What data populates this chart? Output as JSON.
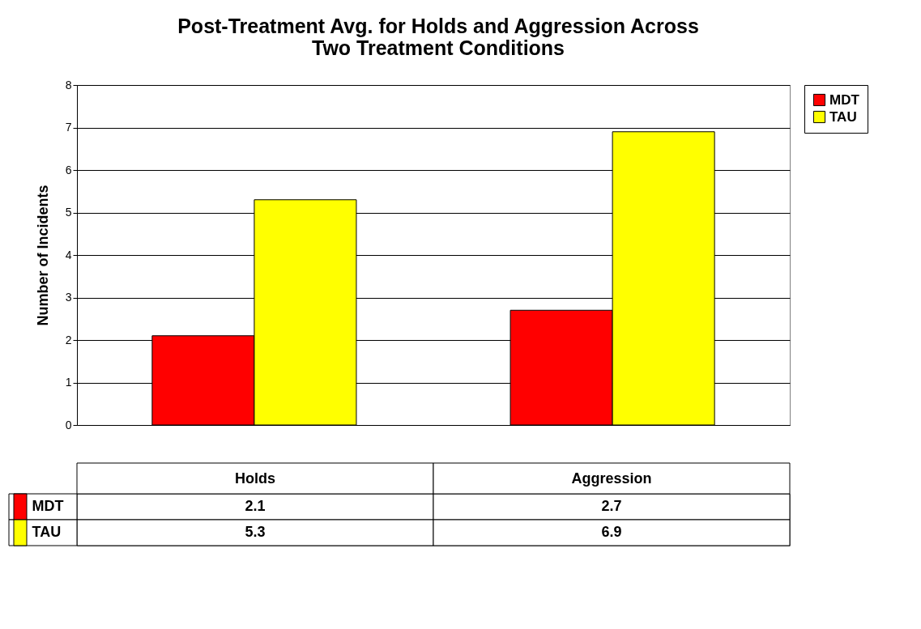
{
  "chart_data": {
    "type": "bar",
    "title": "Post-Treatment Avg. for Holds and Aggression Across Two Treatment Conditions",
    "ylabel": "Number of Incidents",
    "categories": [
      "Holds",
      "Aggression"
    ],
    "series": [
      {
        "name": "MDT",
        "color": "#ff0000",
        "values": [
          2.1,
          2.7
        ]
      },
      {
        "name": "TAU",
        "color": "#ffff00",
        "values": [
          5.3,
          6.9
        ]
      }
    ],
    "ylim": [
      0,
      8
    ],
    "yticks": [
      0,
      1,
      2,
      3,
      4,
      5,
      6,
      7,
      8
    ],
    "grid": "y",
    "legend": "right",
    "data_labels": true
  }
}
